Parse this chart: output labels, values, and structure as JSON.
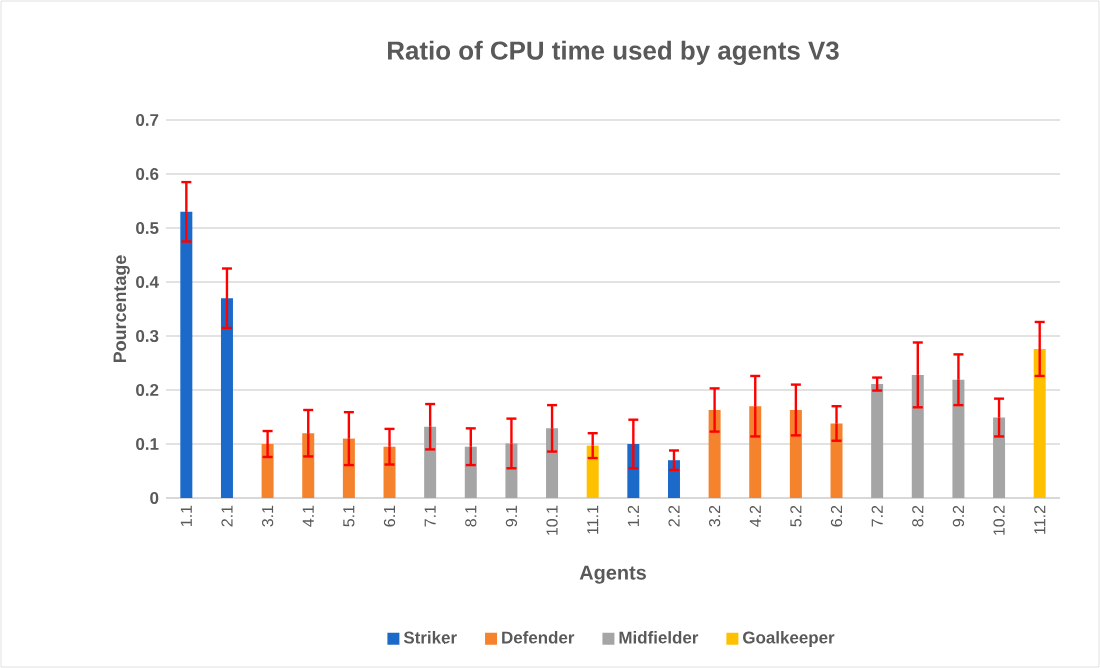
{
  "chart_data": {
    "type": "bar",
    "title": "Ratio of CPU time used by agents V3",
    "xlabel": "Agents",
    "ylabel": "Pourcentage",
    "categories": [
      "1.1",
      "2.1",
      "3.1",
      "4.1",
      "5.1",
      "6.1",
      "7.1",
      "8.1",
      "9.1",
      "10.1",
      "11.1",
      "1.2",
      "2.2",
      "3.2",
      "4.2",
      "5.2",
      "6.2",
      "7.2",
      "8.2",
      "9.2",
      "10.2",
      "11.2"
    ],
    "series": [
      {
        "name": "Striker",
        "color": "#1b6ac9",
        "values": [
          0.53,
          0.37,
          null,
          null,
          null,
          null,
          null,
          null,
          null,
          null,
          null,
          0.1,
          0.07,
          null,
          null,
          null,
          null,
          null,
          null,
          null,
          null,
          null
        ],
        "errors": [
          0.055,
          0.055,
          null,
          null,
          null,
          null,
          null,
          null,
          null,
          null,
          null,
          0.045,
          0.018,
          null,
          null,
          null,
          null,
          null,
          null,
          null,
          null,
          null
        ]
      },
      {
        "name": "Defender",
        "color": "#f5822d",
        "values": [
          null,
          null,
          0.1,
          0.12,
          0.11,
          0.095,
          null,
          null,
          null,
          null,
          null,
          null,
          null,
          0.163,
          0.17,
          0.163,
          0.138,
          null,
          null,
          null,
          null,
          null
        ],
        "errors": [
          null,
          null,
          0.024,
          0.043,
          0.049,
          0.033,
          null,
          null,
          null,
          null,
          null,
          null,
          null,
          0.04,
          0.056,
          0.047,
          0.032,
          null,
          null,
          null,
          null,
          null
        ]
      },
      {
        "name": "Midfielder",
        "color": "#a5a5a5",
        "values": [
          null,
          null,
          null,
          null,
          null,
          null,
          0.132,
          0.095,
          0.101,
          0.129,
          null,
          null,
          null,
          null,
          null,
          null,
          null,
          0.211,
          0.228,
          0.219,
          0.149,
          null
        ],
        "errors": [
          null,
          null,
          null,
          null,
          null,
          null,
          0.042,
          0.034,
          0.046,
          0.043,
          null,
          null,
          null,
          null,
          null,
          null,
          null,
          0.012,
          0.06,
          0.047,
          0.035,
          null
        ]
      },
      {
        "name": "Goalkeeper",
        "color": "#ffc000",
        "values": [
          null,
          null,
          null,
          null,
          null,
          null,
          null,
          null,
          null,
          null,
          0.097,
          null,
          null,
          null,
          null,
          null,
          null,
          null,
          null,
          null,
          null,
          0.276
        ],
        "errors": [
          null,
          null,
          null,
          null,
          null,
          null,
          null,
          null,
          null,
          null,
          0.023,
          null,
          null,
          null,
          null,
          null,
          null,
          null,
          null,
          null,
          null,
          0.05
        ]
      }
    ],
    "ylim": [
      0,
      0.7
    ],
    "yticks": [
      0,
      0.1,
      0.2,
      0.3,
      0.4,
      0.5,
      0.6,
      0.7
    ],
    "grid": "y",
    "legend": "bottom"
  }
}
